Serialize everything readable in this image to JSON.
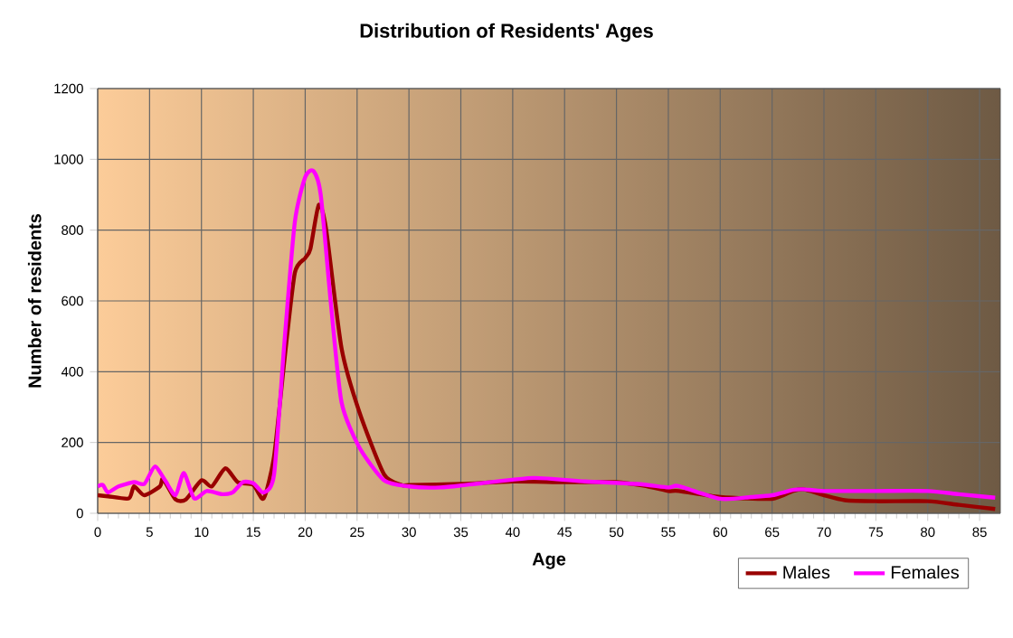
{
  "chart_data": {
    "type": "line",
    "title": "Distribution of Residents' Ages",
    "xlabel": "Age",
    "ylabel": "Number of residents",
    "xlim": [
      0,
      87
    ],
    "xticks": [
      0,
      5,
      10,
      15,
      20,
      25,
      30,
      35,
      40,
      45,
      50,
      55,
      60,
      65,
      70,
      75,
      80,
      85
    ],
    "ylim": [
      0,
      1200
    ],
    "yticks": [
      0,
      200,
      400,
      600,
      800,
      1000,
      1200
    ],
    "grid": true,
    "legend": "bottom right",
    "marker": "none",
    "line_style": "solid",
    "series": [
      {
        "name": "Males",
        "color": "#990000",
        "x": [
          0,
          1,
          3,
          3.5,
          4.5,
          6,
          6.3,
          7.5,
          8.5,
          10,
          11,
          12.3,
          13.5,
          15,
          16,
          17,
          18,
          19,
          20,
          20.5,
          21.3,
          22,
          23.5,
          25.2,
          27.6,
          29.3,
          30,
          35,
          40,
          45,
          50,
          53,
          55,
          56,
          60,
          65,
          67,
          68,
          70,
          72,
          75,
          80,
          83,
          86.5
        ],
        "values": [
          51,
          48,
          42,
          76,
          51,
          76,
          97,
          39,
          39,
          93,
          76,
          127,
          88,
          80,
          42,
          161,
          433,
          679,
          721,
          747,
          871,
          806,
          467,
          288,
          110,
          80,
          80,
          83,
          90,
          88,
          88,
          76,
          63,
          63,
          46,
          41,
          63,
          68,
          51,
          37,
          34,
          34,
          24,
          12
        ]
      },
      {
        "name": "Females",
        "color": "#ff00ff",
        "x": [
          0,
          0.5,
          1,
          2,
          3.5,
          4.5,
          5.5,
          6.5,
          7.5,
          8.3,
          9.3,
          10.5,
          12,
          13,
          14,
          15,
          16,
          17,
          18,
          19,
          20,
          20.8,
          21.5,
          22.5,
          23.5,
          25.2,
          27.6,
          30,
          33,
          37,
          42,
          47,
          52,
          55,
          56,
          60,
          63,
          65,
          67,
          68,
          70,
          75,
          80,
          83,
          86.5
        ],
        "values": [
          76,
          80,
          59,
          76,
          88,
          83,
          132,
          93,
          51,
          114,
          42,
          63,
          54,
          59,
          88,
          85,
          59,
          110,
          484,
          823,
          950,
          967,
          899,
          585,
          314,
          187,
          93,
          76,
          73,
          85,
          100,
          90,
          83,
          73,
          77,
          41,
          46,
          51,
          66,
          68,
          63,
          63,
          63,
          54,
          44
        ]
      }
    ]
  }
}
